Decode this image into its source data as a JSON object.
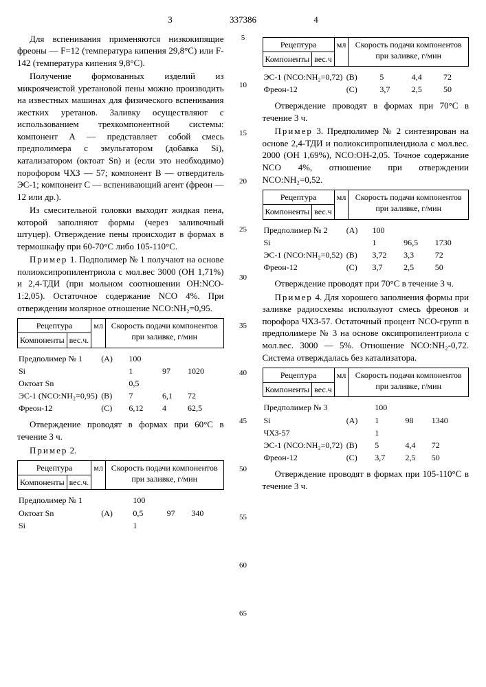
{
  "header": {
    "left_num": "3",
    "patent_num": "337386",
    "right_num": "4"
  },
  "left_col": {
    "p1": "Для вспенивания применяются низкокипящие фреоны — F=12 (температура кипения 29,8°С) или F-142 (температура кипения 9,8°С).",
    "p2": "Получение формованных изделий из микроячеистой уретановой пены можно производить на известных машинах для физического вспенивания жестких уретанов. Заливку осуществляют с использованием трехкомпонентной системы: компонент А — представляет собой смесь предполимера с эмульгатором (добавка Si), катализатором (октоат Sn) и (если это необходимо) порофором ЧХЗ — 57; компонент В — отвердитель ЭС-1; компонент С — вспенивающий агент (фреон — 12 или др.).",
    "p3": "Из смесительной головки выходит жидкая пена, которой заполняют формы (через заливочный штуцер). Отверждение пены происходит в формах в термошкафу при 60-70°С либо 105-110°С.",
    "p4_label": "Пример",
    "p4_num": "1.",
    "p4": "Подполимер № 1 получают на основе полиоксипропилентриола с мол.вес 3000 (ОН 1,71%) и 2,4-ТДИ (при мольном соотношении ОН:NCO-1:2,05). Остаточное содержание NCO 4%. При отверждении молярное отношение NCO:NH₂=0,95.",
    "table1": {
      "h1": "Рецептура",
      "h1a": "Компоненты",
      "h1b": "вес.ч.",
      "h2": "мл",
      "h3": "Скорость подачи компонентов при заливке, г/мин",
      "rows": [
        {
          "c": "Предполимер № 1",
          "w": "100",
          "g": "(А)",
          "ml": "",
          "sp": ""
        },
        {
          "c": "Si",
          "w": "1",
          "g": "",
          "ml": "97",
          "sp": "1020"
        },
        {
          "c": "Октоат Sn",
          "w": "0,5",
          "g": "",
          "ml": "",
          "sp": ""
        },
        {
          "c": "ЭС-1 (NCO:NH₂=0,95)",
          "w": "7",
          "g": "(В)",
          "ml": "6,1",
          "sp": "72"
        },
        {
          "c": "Фреон-12",
          "w": "6,12",
          "g": "(С)",
          "ml": "4",
          "sp": "62,5"
        }
      ]
    },
    "p5": "Отверждение проводят в формах при 60°С в течение 3 ч.",
    "p6_label": "Пример",
    "p6_num": "2.",
    "table2": {
      "rows": [
        {
          "c": "Предполимер № 1",
          "w": "100",
          "g": "",
          "ml": "",
          "sp": ""
        },
        {
          "c": "Октоат Sn",
          "w": "0,5",
          "g": "(А)",
          "ml": "97",
          "sp": "340"
        },
        {
          "c": "Si",
          "w": "1",
          "g": "",
          "ml": "",
          "sp": ""
        }
      ]
    }
  },
  "line_nums": [
    "5",
    "10",
    "15",
    "20",
    "25",
    "30",
    "35",
    "40",
    "45",
    "50",
    "55",
    "60",
    "65"
  ],
  "right_col": {
    "table2b": {
      "h1": "Рецептура",
      "h1a": "Компоненты",
      "h1b": "вес.ч",
      "h2": "мл",
      "h3": "Скорость подачи компонентов при заливке, г/мин",
      "rows": [
        {
          "c": "ЭС-1 (NCO:NH₂=0,72)",
          "w": "5",
          "g": "(В)",
          "ml": "4,4",
          "sp": "72"
        },
        {
          "c": "Фреон-12",
          "w": "3,7",
          "g": "(С)",
          "ml": "2,5",
          "sp": "50"
        }
      ]
    },
    "p7": "Отверждение проводят в формах при 70°С в течение 3 ч.",
    "p8_label": "Пример",
    "p8_num": "3.",
    "p8": "Предполимер № 2 синтезирован на основе 2,4-ТДИ и полиоксипропилендиола с мол.вес. 2000 (ОН 1,69%), NCO:ОН-2,05. Точное содержание NCO 4%, отношение при отверждении NCO:NH₂=0,52.",
    "table3": {
      "rows": [
        {
          "c": "Предполимер № 2",
          "w": "100",
          "g": "(А)",
          "ml": "",
          "sp": ""
        },
        {
          "c": "Si",
          "w": "1",
          "g": "",
          "ml": "96,5",
          "sp": "1730"
        },
        {
          "c": "ЭС-1 (NCO:NH₂=0,52)",
          "w": "3,72",
          "g": "(В)",
          "ml": "3,3",
          "sp": "72"
        },
        {
          "c": "Фреон-12",
          "w": "3,7",
          "g": "(С)",
          "ml": "2,5",
          "sp": "50"
        }
      ]
    },
    "p9": "Отверждение проводят при 70°С в течение 3 ч.",
    "p10_label": "Пример",
    "p10_num": "4.",
    "p10": "Для хорошего заполнения формы при заливке радиосхемы используют смесь фреонов и порофора ЧХЗ-57. Остаточный процент NCO-групп в предполимере № 3 на основе оксипропилентриола с мол.вес. 3000 — 5%. Отношение NCO:NH₂-0,72. Система отверждалась без катализатора.",
    "table4": {
      "rows": [
        {
          "c": "Предполимер № 3",
          "w": "100",
          "g": "",
          "ml": "",
          "sp": ""
        },
        {
          "c": "Si",
          "w": "1",
          "g": "(А)",
          "ml": "98",
          "sp": "1340"
        },
        {
          "c": "ЧХЗ-57",
          "w": "1",
          "g": "",
          "ml": "",
          "sp": ""
        },
        {
          "c": "ЭС-1 (NCO:NH₂=0,72)",
          "w": "5",
          "g": "(В)",
          "ml": "4,4",
          "sp": "72"
        },
        {
          "c": "Фреон-12",
          "w": "3,7",
          "g": "(С)",
          "ml": "2,5",
          "sp": "50"
        }
      ]
    },
    "p11": "Отверждение проводят в формах при 105-110°С в течение 3 ч."
  }
}
